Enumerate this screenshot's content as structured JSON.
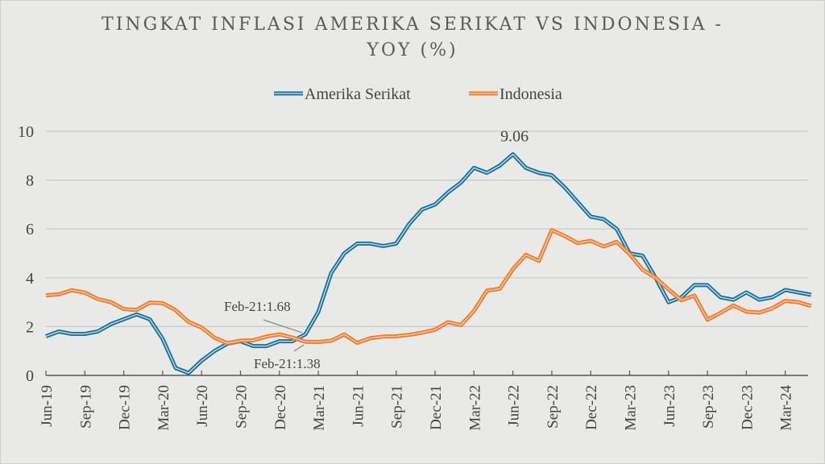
{
  "chart_data": {
    "type": "line",
    "title_line1": "TINGKAT INFLASI AMERIKA SERIKAT VS INDONESIA -",
    "title_line2": "YOY (%)",
    "xlabel": "",
    "ylabel": "",
    "ylim": [
      0,
      10
    ],
    "yticks": [
      "0",
      "2",
      "4",
      "6",
      "8",
      "10"
    ],
    "grid": true,
    "legend_position": "top-center",
    "x_start": "Jun-19",
    "x_end": "May-24",
    "xtick_labels": [
      "Jun-19",
      "Sep-19",
      "Dec-19",
      "Mar-20",
      "Jun-20",
      "Sep-20",
      "Dec-20",
      "Mar-21",
      "Jun-21",
      "Sep-21",
      "Dec-21",
      "Mar-22",
      "Jun-22",
      "Sep-22",
      "Dec-22",
      "Mar-23",
      "Jun-23",
      "Sep-23",
      "Dec-23",
      "Mar-24"
    ],
    "series": [
      {
        "name": "Amerika Serikat",
        "color": "#1f6f97",
        "values": [
          1.6,
          1.8,
          1.7,
          1.7,
          1.8,
          2.1,
          2.3,
          2.5,
          2.3,
          1.5,
          0.3,
          0.1,
          0.6,
          1.0,
          1.3,
          1.4,
          1.2,
          1.2,
          1.4,
          1.4,
          1.68,
          2.6,
          4.2,
          5.0,
          5.4,
          5.4,
          5.3,
          5.4,
          6.2,
          6.8,
          7.0,
          7.5,
          7.9,
          8.5,
          8.3,
          8.6,
          9.06,
          8.5,
          8.3,
          8.2,
          7.7,
          7.1,
          6.5,
          6.4,
          6.0,
          5.0,
          4.9,
          4.0,
          3.0,
          3.2,
          3.7,
          3.7,
          3.2,
          3.1,
          3.4,
          3.1,
          3.2,
          3.5,
          3.4,
          3.3
        ]
      },
      {
        "name": "Indonesia",
        "color": "#f07a2e",
        "values": [
          3.28,
          3.32,
          3.49,
          3.39,
          3.13,
          3.0,
          2.72,
          2.68,
          2.98,
          2.96,
          2.67,
          2.19,
          1.96,
          1.54,
          1.32,
          1.42,
          1.44,
          1.59,
          1.68,
          1.55,
          1.38,
          1.37,
          1.42,
          1.68,
          1.33,
          1.52,
          1.59,
          1.6,
          1.66,
          1.75,
          1.87,
          2.18,
          2.06,
          2.64,
          3.47,
          3.55,
          4.35,
          4.94,
          4.69,
          5.95,
          5.71,
          5.42,
          5.51,
          5.28,
          5.47,
          4.97,
          4.33,
          4.0,
          3.52,
          3.08,
          3.27,
          2.28,
          2.56,
          2.86,
          2.61,
          2.57,
          2.75,
          3.05,
          3.0,
          2.84
        ]
      }
    ],
    "annotations": [
      {
        "text": "9.06",
        "series": 0,
        "index": 36
      },
      {
        "text": "Feb-21:1.68",
        "series": 0,
        "index": 20
      },
      {
        "text": "Feb-21:1.38",
        "series": 1,
        "index": 20
      }
    ]
  }
}
